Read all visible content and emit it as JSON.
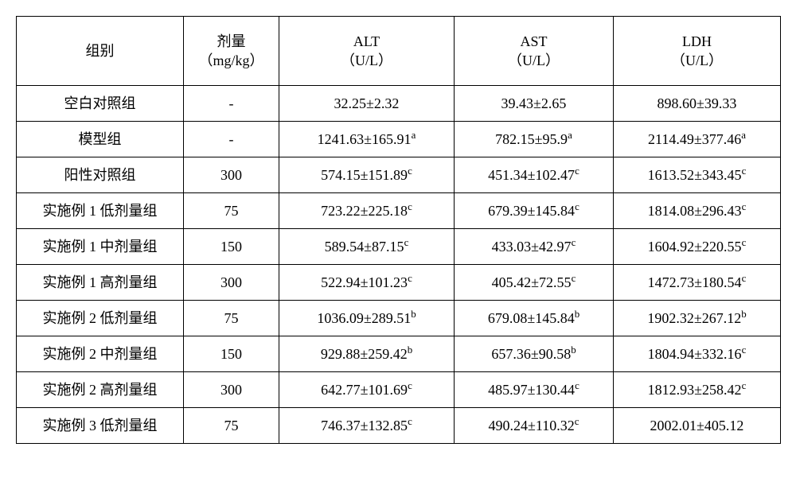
{
  "header": {
    "group": {
      "l1": "组别",
      "l2": ""
    },
    "dose": {
      "l1": "剂量",
      "l2": "（mg/kg）"
    },
    "alt": {
      "l1": "ALT",
      "l2": "（U/L）"
    },
    "ast": {
      "l1": "AST",
      "l2": "（U/L）"
    },
    "ldh": {
      "l1": "LDH",
      "l2": "（U/L）"
    }
  },
  "rows": [
    {
      "group": "空白对照组",
      "dose": "-",
      "alt": "32.25±2.32",
      "alt_sup": "",
      "ast": "39.43±2.65",
      "ast_sup": "",
      "ldh": "898.60±39.33",
      "ldh_sup": ""
    },
    {
      "group": "模型组",
      "dose": "-",
      "alt": "1241.63±165.91",
      "alt_sup": "a",
      "ast": "782.15±95.9",
      "ast_sup": "a",
      "ldh": "2114.49±377.46",
      "ldh_sup": "a"
    },
    {
      "group": "阳性对照组",
      "dose": "300",
      "alt": "574.15±151.89",
      "alt_sup": "c",
      "ast": "451.34±102.47",
      "ast_sup": "c",
      "ldh": "1613.52±343.45",
      "ldh_sup": "c"
    },
    {
      "group": "实施例 1 低剂量组",
      "dose": "75",
      "alt": "723.22±225.18",
      "alt_sup": "c",
      "ast": "679.39±145.84",
      "ast_sup": "c",
      "ldh": "1814.08±296.43",
      "ldh_sup": "c"
    },
    {
      "group": "实施例 1 中剂量组",
      "dose": "150",
      "alt": "589.54±87.15",
      "alt_sup": "c",
      "ast": "433.03±42.97",
      "ast_sup": "c",
      "ldh": "1604.92±220.55",
      "ldh_sup": "c"
    },
    {
      "group": "实施例 1 高剂量组",
      "dose": "300",
      "alt": "522.94±101.23",
      "alt_sup": "c",
      "ast": "405.42±72.55",
      "ast_sup": "c",
      "ldh": "1472.73±180.54",
      "ldh_sup": "c"
    },
    {
      "group": "实施例 2 低剂量组",
      "dose": "75",
      "alt": "1036.09±289.51",
      "alt_sup": "b",
      "ast": "679.08±145.84",
      "ast_sup": "b",
      "ldh": "1902.32±267.12",
      "ldh_sup": "b"
    },
    {
      "group": "实施例 2 中剂量组",
      "dose": "150",
      "alt": "929.88±259.42",
      "alt_sup": "b",
      "ast": "657.36±90.58",
      "ast_sup": "b",
      "ldh": "1804.94±332.16",
      "ldh_sup": "c"
    },
    {
      "group": "实施例 2 高剂量组",
      "dose": "300",
      "alt": "642.77±101.69",
      "alt_sup": "c",
      "ast": "485.97±130.44",
      "ast_sup": "c",
      "ldh": "1812.93±258.42",
      "ldh_sup": "c"
    },
    {
      "group": "实施例 3 低剂量组",
      "dose": "75",
      "alt": "746.37±132.85",
      "alt_sup": "c",
      "ast": "490.24±110.32",
      "ast_sup": "c",
      "ldh": "2002.01±405.12",
      "ldh_sup": ""
    }
  ]
}
